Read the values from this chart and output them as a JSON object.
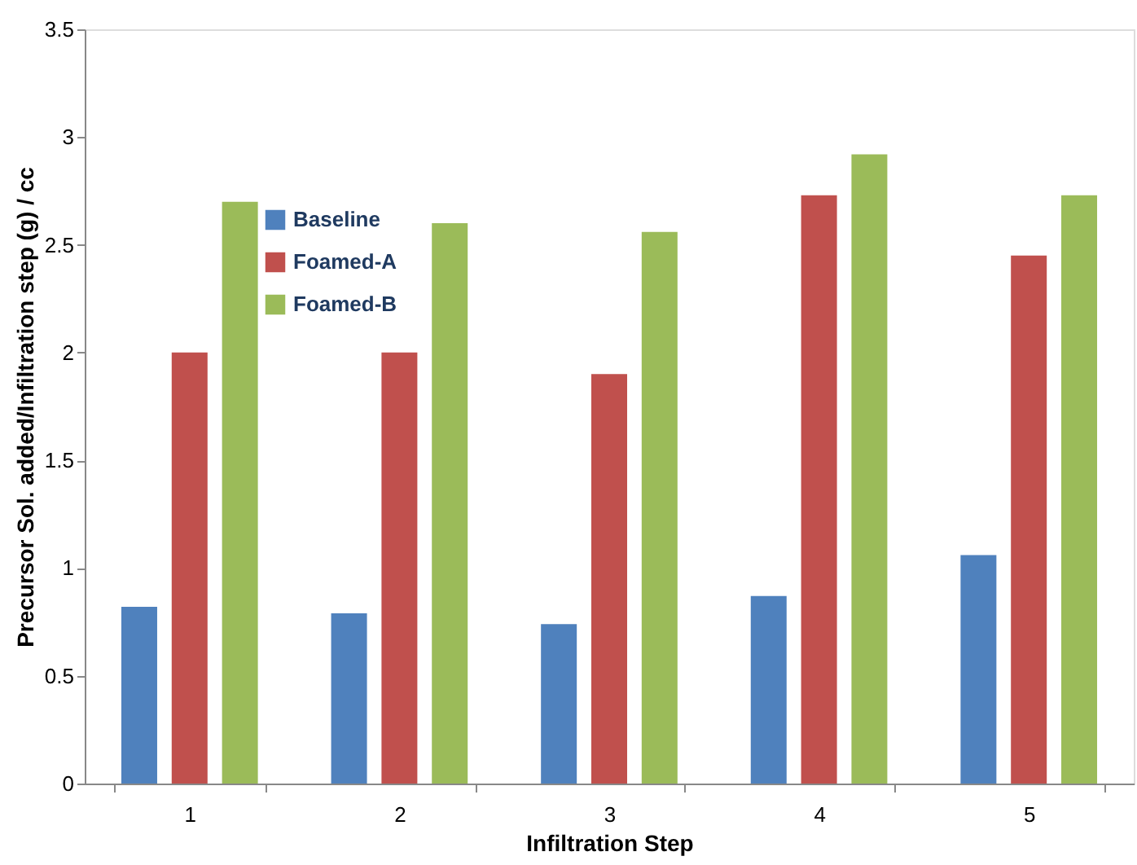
{
  "chart_data": {
    "type": "bar",
    "xlabel": "Infiltration Step",
    "ylabel": "Precursor Sol. added/Infiltration step (g) / cc",
    "categories": [
      "1",
      "2",
      "3",
      "4",
      "5"
    ],
    "series": [
      {
        "name": "Baseline",
        "color": "#4f81bd",
        "values": [
          0.82,
          0.79,
          0.74,
          0.87,
          1.06
        ]
      },
      {
        "name": "Foamed-A",
        "color": "#c0504d",
        "values": [
          2.0,
          2.0,
          1.9,
          2.73,
          2.45
        ]
      },
      {
        "name": "Foamed-B",
        "color": "#9bbb59",
        "values": [
          2.7,
          2.6,
          2.56,
          2.92,
          2.73
        ]
      }
    ],
    "ylim": [
      0,
      3.5
    ],
    "yticks": [
      0,
      0.5,
      1,
      1.5,
      2,
      2.5,
      3,
      3.5
    ],
    "grid": false,
    "legend": "top left"
  }
}
